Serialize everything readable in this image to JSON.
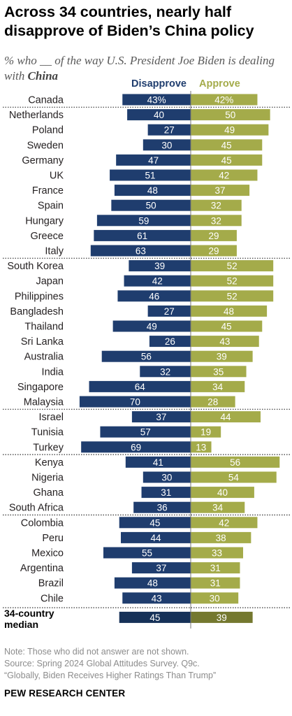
{
  "title": "Across 34 countries, nearly half disapprove of Biden’s China policy",
  "subtitle": {
    "prefix": "% who __ of the way U.S. President Joe Biden is dealing with ",
    "emphasis": "China"
  },
  "notes": {
    "note": "Note: Those who did not answer are not shown.",
    "source": "Source: Spring 2024 Global Attitudes Survey. Q9c.",
    "report": "“Globally, Biden Receives Higher Ratings Than Trump”"
  },
  "brand": "PEW RESEARCH CENTER",
  "colors": {
    "disapprove": "#1f3d6e",
    "approve": "#a4ab4a",
    "median_disapprove": "#163158",
    "median_approve": "#74782f"
  },
  "chart_data": {
    "type": "bar",
    "orientation": "diverging-horizontal",
    "series": [
      {
        "name": "Disapprove",
        "values": [
          43,
          40,
          27,
          30,
          47,
          51,
          48,
          50,
          59,
          61,
          63,
          39,
          42,
          46,
          27,
          49,
          26,
          56,
          32,
          64,
          70,
          37,
          57,
          69,
          41,
          30,
          31,
          36,
          45,
          44,
          55,
          37,
          48,
          43,
          45
        ]
      },
      {
        "name": "Approve",
        "values": [
          42,
          50,
          49,
          45,
          45,
          42,
          37,
          32,
          32,
          29,
          29,
          52,
          52,
          52,
          48,
          45,
          43,
          39,
          35,
          34,
          28,
          44,
          19,
          13,
          56,
          54,
          40,
          34,
          42,
          38,
          33,
          31,
          31,
          30,
          39
        ]
      }
    ],
    "categories": [
      "Canada",
      "Netherlands",
      "Poland",
      "Sweden",
      "Germany",
      "UK",
      "France",
      "Spain",
      "Hungary",
      "Greece",
      "Italy",
      "South Korea",
      "Japan",
      "Philippines",
      "Bangladesh",
      "Thailand",
      "Sri Lanka",
      "Australia",
      "India",
      "Singapore",
      "Malaysia",
      "Israel",
      "Tunisia",
      "Turkey",
      "Kenya",
      "Nigeria",
      "Ghana",
      "South Africa",
      "Colombia",
      "Peru",
      "Mexico",
      "Argentina",
      "Brazil",
      "Chile",
      "34-country median"
    ],
    "value_labels_with_percent_sign": [
      "Canada"
    ],
    "median_category": "34-country median",
    "region_groups": [
      [
        "Canada"
      ],
      [
        "Netherlands",
        "Poland",
        "Sweden",
        "Germany",
        "UK",
        "France",
        "Spain",
        "Hungary",
        "Greece",
        "Italy"
      ],
      [
        "South Korea",
        "Japan",
        "Philippines",
        "Bangladesh",
        "Thailand",
        "Sri Lanka",
        "Australia",
        "India",
        "Singapore",
        "Malaysia"
      ],
      [
        "Israel",
        "Tunisia",
        "Turkey"
      ],
      [
        "Kenya",
        "Nigeria",
        "Ghana",
        "South Africa"
      ],
      [
        "Colombia",
        "Peru",
        "Mexico",
        "Argentina",
        "Brazil",
        "Chile"
      ],
      [
        "34-country median"
      ]
    ]
  }
}
